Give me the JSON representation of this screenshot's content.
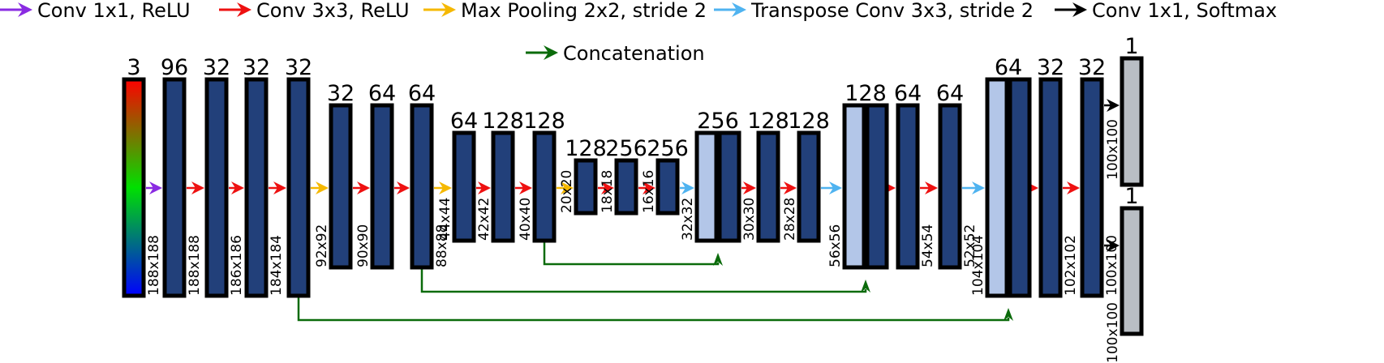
{
  "legend": [
    {
      "label": "Conv 1x1, ReLU",
      "color": "#8a2be2"
    },
    {
      "label": "Conv 3x3, ReLU",
      "color": "#ee1111"
    },
    {
      "label": "Max Pooling 2x2, stride 2",
      "color": "#f5b800"
    },
    {
      "label": "Transpose Conv 3x3, stride 2",
      "color": "#4fb3f0"
    },
    {
      "label": "Conv 1x1, Softmax",
      "color": "#000000"
    },
    {
      "label": "Concatenation",
      "color": "#0b6b0b"
    }
  ],
  "colors": {
    "block_fill": "#22407a",
    "concat_fill": "#b3c6e8",
    "output_fill": "#b9bec4",
    "skip_line": "#0b6b0b"
  },
  "blocks": [
    {
      "id": "input",
      "channels": "3",
      "size": "188x188",
      "kind": "input"
    },
    {
      "id": "b1",
      "channels": "96",
      "size": "188x188",
      "kind": "feature"
    },
    {
      "id": "b2",
      "channels": "32",
      "size": "186x186",
      "kind": "feature"
    },
    {
      "id": "b3",
      "channels": "32",
      "size": "184x184",
      "kind": "feature"
    },
    {
      "id": "b4",
      "channels": "32",
      "size": "",
      "kind": "feature"
    },
    {
      "id": "b5",
      "channels": "32",
      "size": "92x92",
      "kind": "feature"
    },
    {
      "id": "b6",
      "channels": "64",
      "size": "90x90",
      "kind": "feature"
    },
    {
      "id": "b7",
      "channels": "64",
      "size": "88x88",
      "kind": "feature"
    },
    {
      "id": "b8",
      "channels": "64",
      "size": "44x44",
      "kind": "feature"
    },
    {
      "id": "b9",
      "channels": "128",
      "size": "42x42",
      "kind": "feature"
    },
    {
      "id": "b10",
      "channels": "128",
      "size": "40x40",
      "kind": "feature"
    },
    {
      "id": "b11",
      "channels": "128",
      "size": "20x20",
      "kind": "feature"
    },
    {
      "id": "b12",
      "channels": "256",
      "size": "18x18",
      "kind": "feature"
    },
    {
      "id": "b13",
      "channels": "256",
      "size": "16x16",
      "kind": "feature"
    },
    {
      "id": "b14",
      "channels": "256",
      "size": "32x32",
      "kind": "concat"
    },
    {
      "id": "b15",
      "channels": "128",
      "size": "30x30",
      "kind": "feature"
    },
    {
      "id": "b16",
      "channels": "128",
      "size": "28x28",
      "kind": "feature"
    },
    {
      "id": "b17",
      "channels": "128",
      "size": "56x56",
      "kind": "concat"
    },
    {
      "id": "b18",
      "channels": "64",
      "size": "54x54",
      "kind": "feature"
    },
    {
      "id": "b19",
      "channels": "64",
      "size": "52x52",
      "kind": "feature"
    },
    {
      "id": "b20",
      "channels": "64",
      "size": "104x104",
      "kind": "concat"
    },
    {
      "id": "b21",
      "channels": "32",
      "size": "102x102",
      "kind": "feature"
    },
    {
      "id": "b22",
      "channels": "32",
      "size": "100x100",
      "kind": "feature"
    },
    {
      "id": "out1",
      "channels": "1",
      "size": "100x100",
      "kind": "output"
    },
    {
      "id": "out2",
      "channels": "1",
      "size": "100x100",
      "kind": "output"
    }
  ],
  "connections": [
    {
      "op": "Conv 1x1, ReLU",
      "from": "input",
      "to": "b1"
    },
    {
      "op": "Conv 3x3, ReLU",
      "from": "b1",
      "to": "b2"
    },
    {
      "op": "Conv 3x3, ReLU",
      "from": "b2",
      "to": "b3"
    },
    {
      "op": "Conv 3x3, ReLU",
      "from": "b3",
      "to": "b4"
    },
    {
      "op": "Max Pooling 2x2, stride 2",
      "from": "b4",
      "to": "b5"
    },
    {
      "op": "Conv 3x3, ReLU",
      "from": "b5",
      "to": "b6"
    },
    {
      "op": "Conv 3x3, ReLU",
      "from": "b6",
      "to": "b7"
    },
    {
      "op": "Max Pooling 2x2, stride 2",
      "from": "b7",
      "to": "b8"
    },
    {
      "op": "Conv 3x3, ReLU",
      "from": "b8",
      "to": "b9"
    },
    {
      "op": "Conv 3x3, ReLU",
      "from": "b9",
      "to": "b10"
    },
    {
      "op": "Max Pooling 2x2, stride 2",
      "from": "b10",
      "to": "b11"
    },
    {
      "op": "Conv 3x3, ReLU",
      "from": "b11",
      "to": "b12"
    },
    {
      "op": "Conv 3x3, ReLU",
      "from": "b12",
      "to": "b13"
    },
    {
      "op": "Transpose Conv 3x3, stride 2",
      "from": "b13",
      "to": "b14"
    },
    {
      "op": "Conv 3x3, ReLU",
      "from": "b14",
      "to": "b15"
    },
    {
      "op": "Conv 3x3, ReLU",
      "from": "b15",
      "to": "b16"
    },
    {
      "op": "Transpose Conv 3x3, stride 2",
      "from": "b16",
      "to": "b17"
    },
    {
      "op": "Conv 3x3, ReLU",
      "from": "b17",
      "to": "b18"
    },
    {
      "op": "Conv 3x3, ReLU",
      "from": "b18",
      "to": "b19"
    },
    {
      "op": "Transpose Conv 3x3, stride 2",
      "from": "b19",
      "to": "b20"
    },
    {
      "op": "Conv 3x3, ReLU",
      "from": "b20",
      "to": "b21"
    },
    {
      "op": "Conv 3x3, ReLU",
      "from": "b21",
      "to": "b22"
    },
    {
      "op": "Conv 1x1, Softmax",
      "from": "b22",
      "to": "out1"
    },
    {
      "op": "Conv 1x1, Softmax",
      "from": "b22",
      "to": "out2"
    }
  ],
  "skips": [
    {
      "from": "b10",
      "to": "b14"
    },
    {
      "from": "b7",
      "to": "b17"
    },
    {
      "from": "b4",
      "to": "b20"
    }
  ]
}
